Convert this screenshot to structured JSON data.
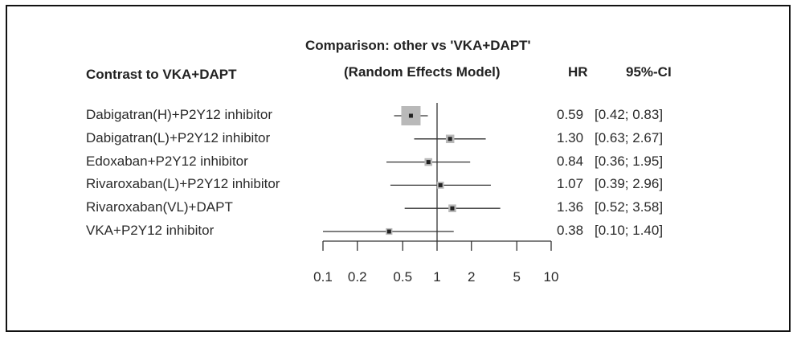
{
  "header": {
    "contrast": "Contrast to VKA+DAPT",
    "comparison": "Comparison: other vs 'VKA+DAPT'",
    "model": "(Random Effects Model)",
    "hr": "HR",
    "ci": "95%-CI"
  },
  "chart_data": {
    "type": "forest",
    "x_scale": "log",
    "xlim": [
      0.1,
      10
    ],
    "reference_line": 1,
    "ticks": [
      0.1,
      0.2,
      0.5,
      1,
      2,
      5,
      10
    ],
    "tick_labels": [
      "0.1",
      "0.2",
      "0.5",
      "1",
      "2",
      "5",
      "10"
    ],
    "rows": [
      {
        "label": "Dabigatran(H)+P2Y12 inhibitor",
        "hr": 0.59,
        "lower": 0.42,
        "upper": 0.83,
        "hr_text": "0.59",
        "ci_text": "[0.42; 0.83]",
        "weight": 1.0
      },
      {
        "label": "Dabigatran(L)+P2Y12 inhibitor",
        "hr": 1.3,
        "lower": 0.63,
        "upper": 2.67,
        "hr_text": "1.30",
        "ci_text": "[0.63; 2.67]",
        "weight": 0.25
      },
      {
        "label": "Edoxaban+P2Y12 inhibitor",
        "hr": 0.84,
        "lower": 0.36,
        "upper": 1.95,
        "hr_text": "0.84",
        "ci_text": "[0.36; 1.95]",
        "weight": 0.2
      },
      {
        "label": "Rivaroxaban(L)+P2Y12 inhibitor",
        "hr": 1.07,
        "lower": 0.39,
        "upper": 2.96,
        "hr_text": "1.07",
        "ci_text": "[0.39; 2.96]",
        "weight": 0.15
      },
      {
        "label": "Rivaroxaban(VL)+DAPT",
        "hr": 1.36,
        "lower": 0.52,
        "upper": 3.58,
        "hr_text": "1.36",
        "ci_text": "[0.52; 3.58]",
        "weight": 0.2
      },
      {
        "label": "VKA+P2Y12 inhibitor",
        "hr": 0.38,
        "lower": 0.1,
        "upper": 1.4,
        "hr_text": "0.38",
        "ci_text": "[0.10; 1.40]",
        "weight": 0.12
      }
    ]
  }
}
